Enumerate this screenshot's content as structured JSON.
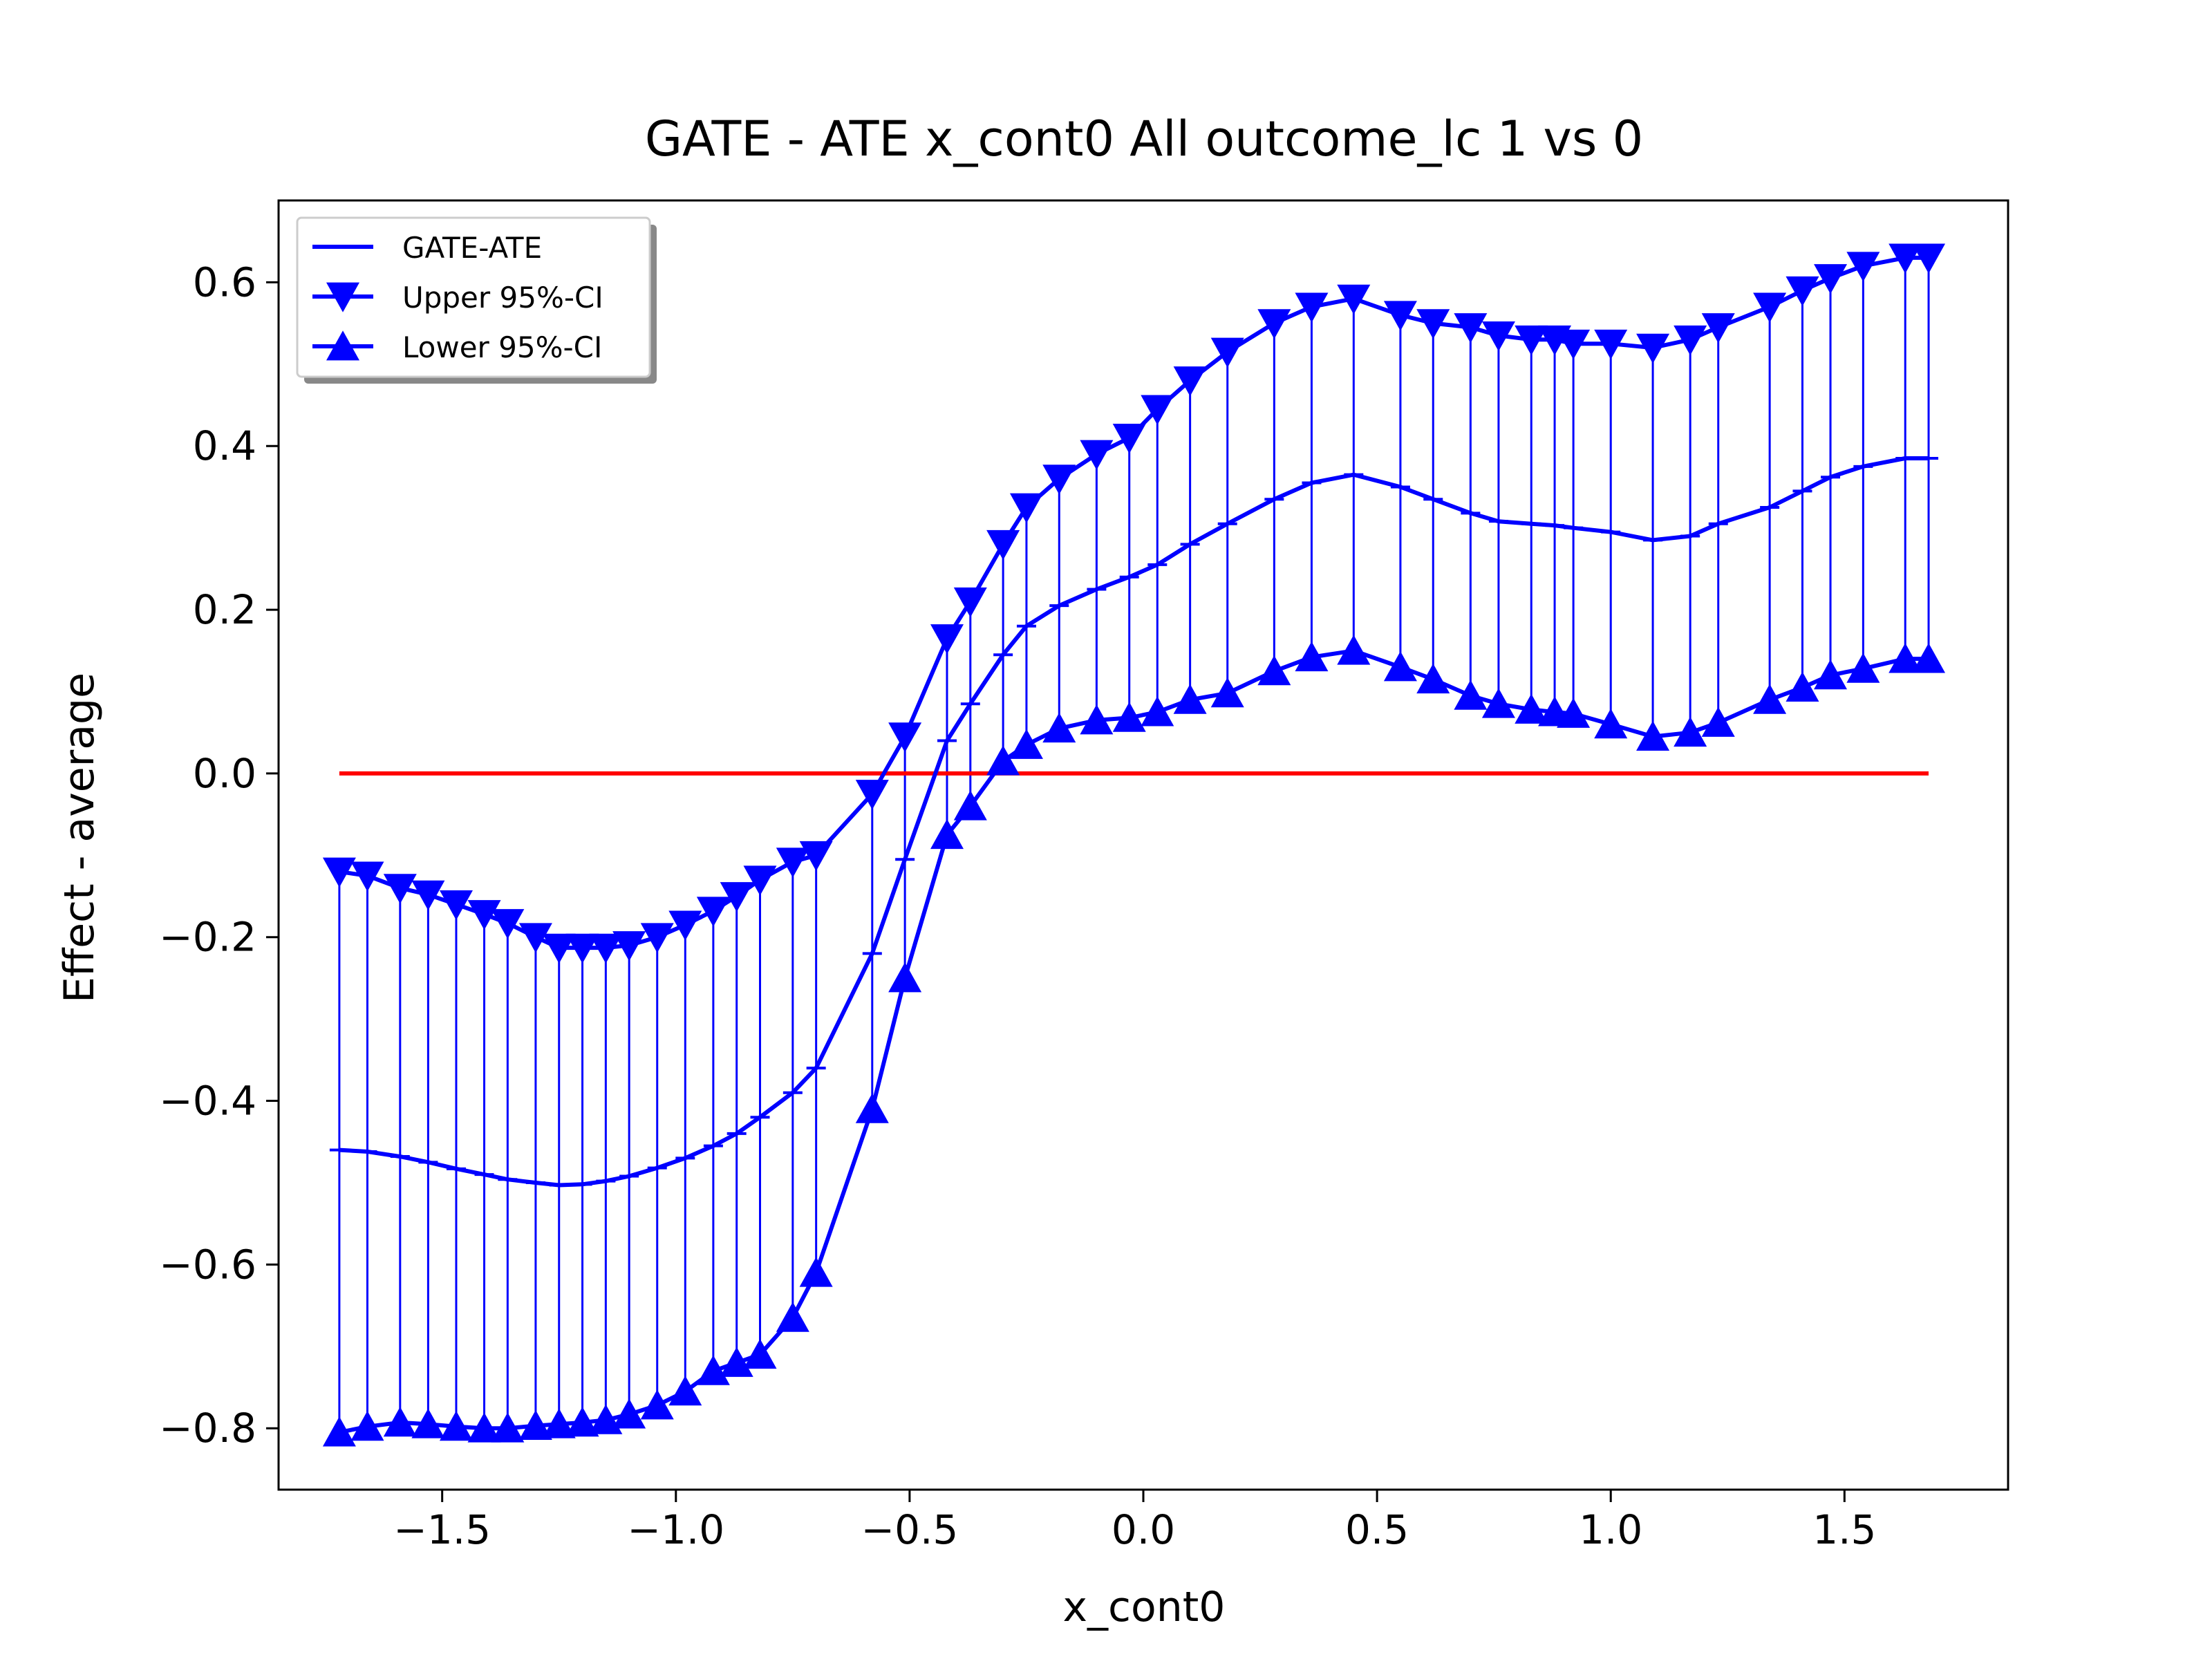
{
  "chart_data": {
    "type": "line",
    "title": "GATE - ATE x_cont0 All outcome_lc  1 vs 0",
    "xlabel": "x_cont0",
    "ylabel": "Effect - average",
    "xlim": [
      -1.85,
      1.85
    ],
    "ylim": [
      -0.875,
      0.7
    ],
    "xticks": [
      -1.5,
      -1.0,
      -0.5,
      0.0,
      0.5,
      1.0,
      1.5
    ],
    "xtick_labels": [
      "−1.5",
      "−1.0",
      "−0.5",
      "0.0",
      "0.5",
      "1.0",
      "1.5"
    ],
    "yticks": [
      -0.8,
      -0.6,
      -0.4,
      -0.2,
      0.0,
      0.2,
      0.4,
      0.6
    ],
    "ytick_labels": [
      "−0.8",
      "−0.6",
      "−0.4",
      "−0.2",
      "0.0",
      "0.2",
      "0.4",
      "0.6"
    ],
    "grid": false,
    "legend_position": "top-left",
    "x": [
      -1.72,
      -1.66,
      -1.59,
      -1.53,
      -1.47,
      -1.41,
      -1.36,
      -1.3,
      -1.25,
      -1.2,
      -1.15,
      -1.1,
      -1.04,
      -0.98,
      -0.92,
      -0.87,
      -0.82,
      -0.75,
      -0.7,
      -0.58,
      -0.51,
      -0.42,
      -0.37,
      -0.3,
      -0.25,
      -0.18,
      -0.1,
      -0.03,
      0.03,
      0.1,
      0.18,
      0.28,
      0.36,
      0.45,
      0.55,
      0.62,
      0.7,
      0.76,
      0.83,
      0.88,
      0.92,
      1.0,
      1.09,
      1.17,
      1.23,
      1.34,
      1.41,
      1.47,
      1.54,
      1.63,
      1.68
    ],
    "series": [
      {
        "name": "GATE-ATE",
        "color": "#0000ff",
        "marker": "none",
        "values": [
          -0.46,
          -0.462,
          -0.468,
          -0.475,
          -0.483,
          -0.49,
          -0.496,
          -0.5,
          -0.503,
          -0.502,
          -0.498,
          -0.492,
          -0.482,
          -0.47,
          -0.455,
          -0.44,
          -0.42,
          -0.39,
          -0.36,
          -0.22,
          -0.105,
          0.04,
          0.085,
          0.145,
          0.18,
          0.205,
          0.225,
          0.24,
          0.255,
          0.28,
          0.305,
          0.335,
          0.355,
          0.365,
          0.35,
          0.335,
          0.318,
          0.308,
          0.305,
          0.303,
          0.3,
          0.295,
          0.285,
          0.29,
          0.305,
          0.325,
          0.345,
          0.362,
          0.375,
          0.385,
          0.385
        ]
      },
      {
        "name": "Upper 95%-CI",
        "color": "#0000ff",
        "marker": "triangle-down",
        "values": [
          -0.12,
          -0.125,
          -0.14,
          -0.148,
          -0.16,
          -0.172,
          -0.183,
          -0.2,
          -0.213,
          -0.213,
          -0.213,
          -0.21,
          -0.2,
          -0.185,
          -0.168,
          -0.15,
          -0.13,
          -0.108,
          -0.1,
          -0.025,
          0.045,
          0.165,
          0.21,
          0.28,
          0.325,
          0.36,
          0.39,
          0.41,
          0.445,
          0.48,
          0.515,
          0.55,
          0.57,
          0.58,
          0.56,
          0.55,
          0.545,
          0.535,
          0.53,
          0.53,
          0.525,
          0.525,
          0.52,
          0.53,
          0.545,
          0.57,
          0.59,
          0.605,
          0.62,
          0.63,
          0.63
        ]
      },
      {
        "name": "Lower 95%-CI",
        "color": "#0000ff",
        "marker": "triangle-up",
        "values": [
          -0.805,
          -0.798,
          -0.793,
          -0.795,
          -0.798,
          -0.8,
          -0.8,
          -0.797,
          -0.795,
          -0.793,
          -0.79,
          -0.783,
          -0.772,
          -0.755,
          -0.73,
          -0.72,
          -0.71,
          -0.665,
          -0.61,
          -0.41,
          -0.25,
          -0.075,
          -0.04,
          0.015,
          0.035,
          0.055,
          0.065,
          0.068,
          0.075,
          0.09,
          0.098,
          0.125,
          0.142,
          0.15,
          0.13,
          0.115,
          0.095,
          0.085,
          0.078,
          0.075,
          0.073,
          0.06,
          0.045,
          0.05,
          0.062,
          0.09,
          0.105,
          0.12,
          0.128,
          0.14,
          0.14
        ]
      },
      {
        "name": "",
        "color": "#ff0000",
        "marker": "none",
        "x": [
          -1.72,
          1.68
        ],
        "values": [
          0.0,
          0.0
        ]
      }
    ]
  }
}
